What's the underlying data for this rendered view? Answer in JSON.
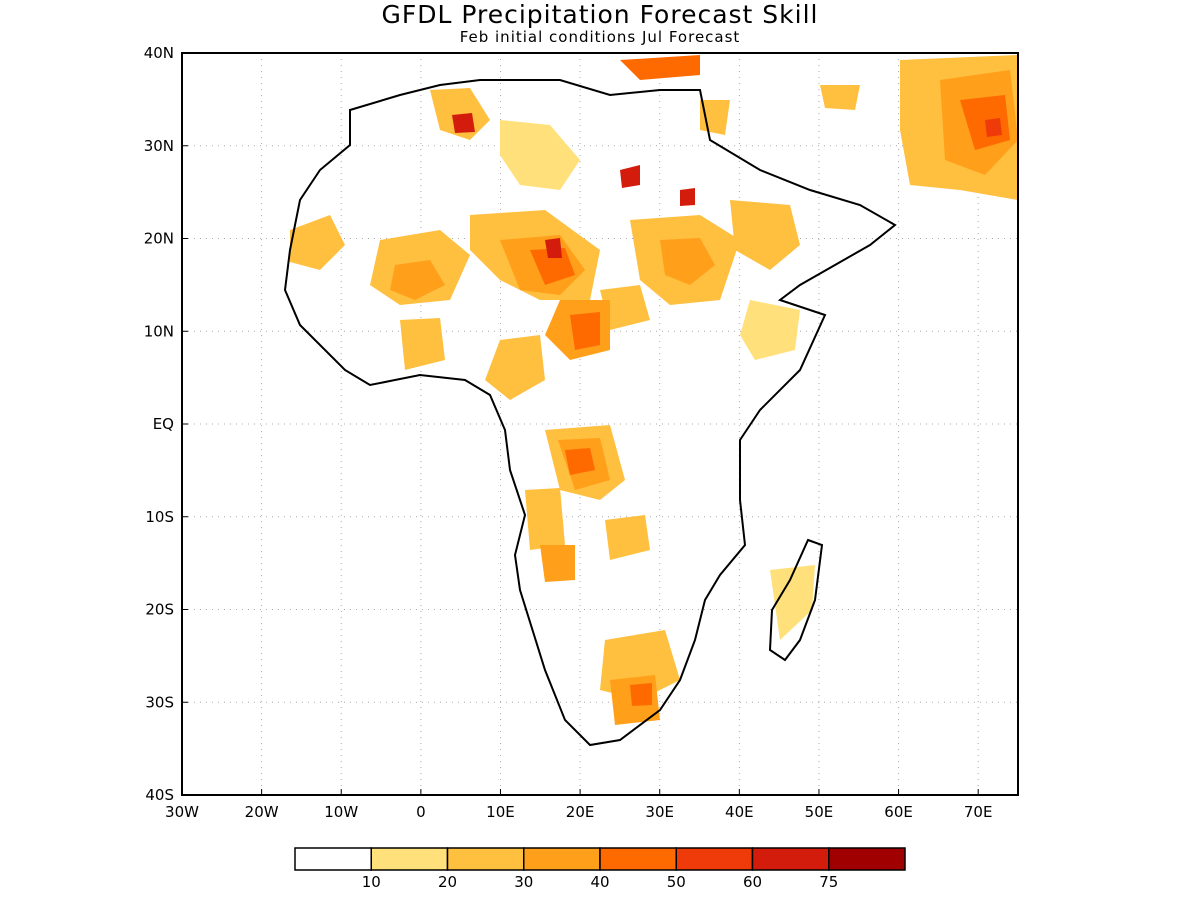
{
  "title": "GFDL Precipitation Forecast Skill",
  "subtitle": "Feb initial conditions  Jul Forecast",
  "map": {
    "lon_range": [
      -30,
      75
    ],
    "lat_range": [
      -40,
      40
    ],
    "lon_ticks": [
      {
        "value": -30,
        "label": "30W"
      },
      {
        "value": -20,
        "label": "20W"
      },
      {
        "value": -10,
        "label": "10W"
      },
      {
        "value": 0,
        "label": "0"
      },
      {
        "value": 10,
        "label": "10E"
      },
      {
        "value": 20,
        "label": "20E"
      },
      {
        "value": 30,
        "label": "30E"
      },
      {
        "value": 40,
        "label": "40E"
      },
      {
        "value": 50,
        "label": "50E"
      },
      {
        "value": 60,
        "label": "60E"
      },
      {
        "value": 70,
        "label": "70E"
      }
    ],
    "lat_ticks": [
      {
        "value": 40,
        "label": "40N"
      },
      {
        "value": 30,
        "label": "30N"
      },
      {
        "value": 20,
        "label": "20N"
      },
      {
        "value": 10,
        "label": "10N"
      },
      {
        "value": 0,
        "label": "EQ"
      },
      {
        "value": -10,
        "label": "10S"
      },
      {
        "value": -20,
        "label": "20S"
      },
      {
        "value": -30,
        "label": "30S"
      },
      {
        "value": -40,
        "label": "40S"
      }
    ],
    "grid": true
  },
  "colorbar": {
    "levels": [
      "10",
      "20",
      "30",
      "40",
      "50",
      "60",
      "75"
    ],
    "colors": [
      "#ffffff",
      "#ffe07a",
      "#ffbf3f",
      "#ff9f1a",
      "#ff6a00",
      "#ef3a0a",
      "#d41c0c",
      "#a00000"
    ]
  }
}
